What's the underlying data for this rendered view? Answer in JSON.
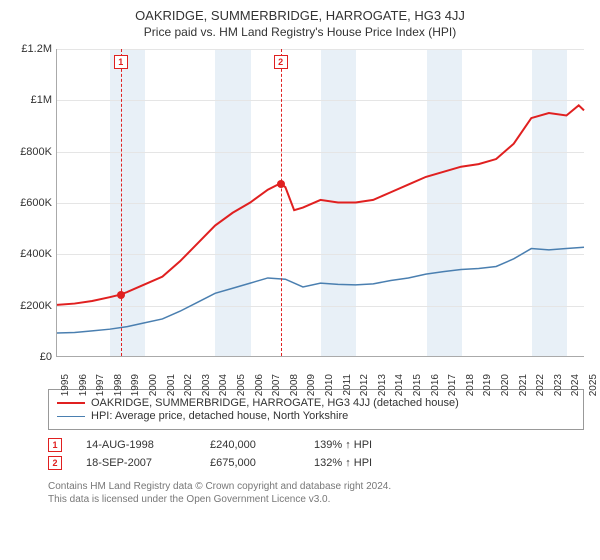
{
  "title": "OAKRIDGE, SUMMERBRIDGE, HARROGATE, HG3 4JJ",
  "subtitle": "Price paid vs. HM Land Registry's House Price Index (HPI)",
  "chart": {
    "type": "line",
    "x_years": [
      1995,
      1996,
      1997,
      1998,
      1999,
      2000,
      2001,
      2002,
      2003,
      2004,
      2005,
      2006,
      2007,
      2008,
      2009,
      2010,
      2011,
      2012,
      2013,
      2014,
      2015,
      2016,
      2017,
      2018,
      2019,
      2020,
      2021,
      2022,
      2023,
      2024,
      2025
    ],
    "ylim": [
      0,
      1200000
    ],
    "ytick_step": 200000,
    "ytick_labels": [
      "£0",
      "£200K",
      "£400K",
      "£600K",
      "£800K",
      "£1M",
      "£1.2M"
    ],
    "background_color": "#ffffff",
    "grid_color": "#e5e5e5",
    "band_color": "#e8f0f7",
    "band_years": [
      1998,
      1999,
      2004,
      2005,
      2010,
      2011,
      2016,
      2017,
      2022,
      2023
    ],
    "axis_fontsize": 11,
    "series": {
      "property": {
        "label": "OAKRIDGE, SUMMERBRIDGE, HARROGATE, HG3 4JJ (detached house)",
        "color": "#e02020",
        "line_width": 2,
        "values_by_year": {
          "1995": 200000,
          "1996": 205000,
          "1997": 215000,
          "1998": 230000,
          "1998.62": 240000,
          "1999": 250000,
          "2000": 280000,
          "2001": 310000,
          "2002": 370000,
          "2003": 440000,
          "2004": 510000,
          "2005": 560000,
          "2006": 600000,
          "2007": 650000,
          "2007.71": 675000,
          "2008": 660000,
          "2008.5": 570000,
          "2009": 580000,
          "2010": 610000,
          "2011": 600000,
          "2012": 600000,
          "2013": 610000,
          "2014": 640000,
          "2015": 670000,
          "2016": 700000,
          "2017": 720000,
          "2018": 740000,
          "2019": 750000,
          "2020": 770000,
          "2021": 830000,
          "2022": 930000,
          "2023": 950000,
          "2024": 940000,
          "2024.7": 980000,
          "2025": 960000
        }
      },
      "hpi": {
        "label": "HPI: Average price, detached house, North Yorkshire",
        "color": "#4a7fb0",
        "line_width": 1.5,
        "values_by_year": {
          "1995": 90000,
          "1996": 92000,
          "1997": 98000,
          "1998": 105000,
          "1999": 115000,
          "2000": 130000,
          "2001": 145000,
          "2002": 175000,
          "2003": 210000,
          "2004": 245000,
          "2005": 265000,
          "2006": 285000,
          "2007": 305000,
          "2008": 300000,
          "2009": 270000,
          "2010": 285000,
          "2011": 280000,
          "2012": 278000,
          "2013": 282000,
          "2014": 295000,
          "2015": 305000,
          "2016": 320000,
          "2017": 330000,
          "2018": 338000,
          "2019": 342000,
          "2020": 350000,
          "2021": 380000,
          "2022": 420000,
          "2023": 415000,
          "2024": 420000,
          "2025": 425000
        }
      }
    },
    "markers": [
      {
        "n": "1",
        "year": 1998.62,
        "price": 240000,
        "box_color": "#e02020",
        "dot_color": "#e02020"
      },
      {
        "n": "2",
        "year": 2007.71,
        "price": 675000,
        "box_color": "#e02020",
        "dot_color": "#e02020"
      }
    ]
  },
  "legend": {
    "items": [
      {
        "key": "property"
      },
      {
        "key": "hpi"
      }
    ]
  },
  "sales": [
    {
      "n": "1",
      "date": "14-AUG-1998",
      "price": "£240,000",
      "hpi": "139% ↑ HPI"
    },
    {
      "n": "2",
      "date": "18-SEP-2007",
      "price": "£675,000",
      "hpi": "132% ↑ HPI"
    }
  ],
  "footer": {
    "line1": "Contains HM Land Registry data © Crown copyright and database right 2024.",
    "line2": "This data is licensed under the Open Government Licence v3.0."
  }
}
